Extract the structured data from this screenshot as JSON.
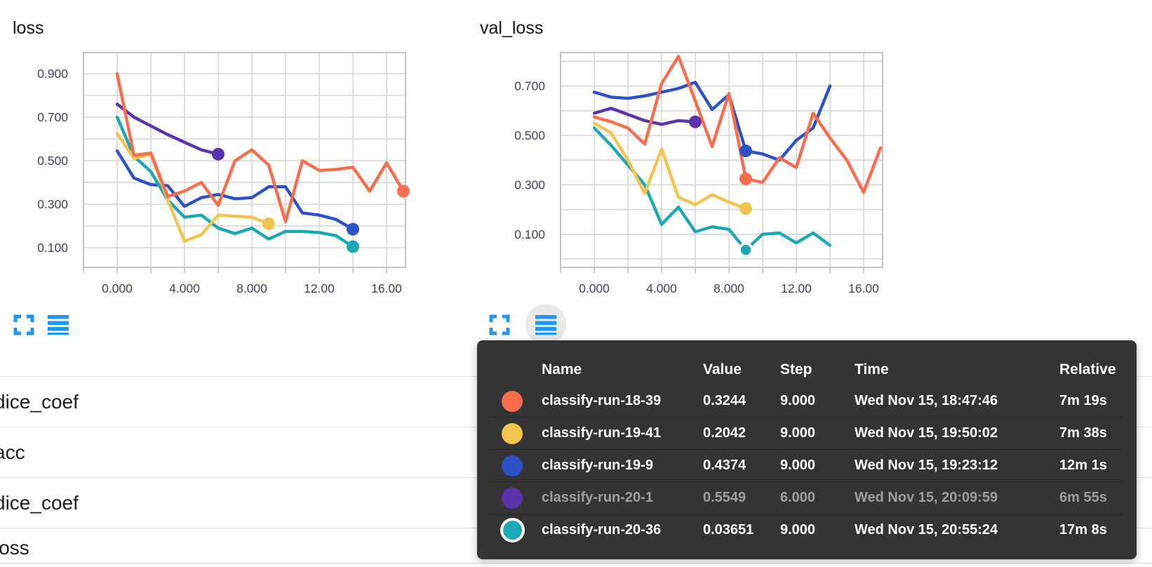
{
  "chart_data": [
    {
      "type": "line",
      "title": "loss",
      "xlabel": "",
      "ylabel": "",
      "xlim": [
        -2,
        17.1
      ],
      "ylim": [
        0,
        1.0
      ],
      "grid": true,
      "legend": "none",
      "x_tick_labels": [
        "0.000",
        "4.000",
        "8.000",
        "12.00",
        "16.00"
      ],
      "x_tick_steps": [
        0,
        4,
        8,
        12,
        16
      ],
      "y_tick_labels": [
        "0.900",
        "0.700",
        "0.500",
        "0.300",
        "0.100"
      ],
      "y_tick_values": [
        0.9,
        0.7,
        0.5,
        0.3,
        0.1
      ],
      "series": [
        {
          "name": "classify-run-18-39",
          "color": "#F96C4C",
          "dot_step": 17,
          "dot_ring": false,
          "values": [
            0.9,
            0.525,
            0.535,
            0.335,
            0.36,
            0.4,
            0.295,
            0.5,
            0.55,
            0.48,
            0.22,
            0.5,
            0.455,
            0.46,
            0.47,
            0.36,
            0.49,
            0.36
          ]
        },
        {
          "name": "classify-run-19-41",
          "color": "#F1C44F",
          "dot_step": 9,
          "dot_ring": false,
          "values": [
            0.625,
            0.51,
            0.53,
            0.32,
            0.13,
            0.16,
            0.25,
            0.245,
            0.24,
            0.21
          ]
        },
        {
          "name": "classify-run-19-9",
          "color": "#2C52C6",
          "dot_step": 14,
          "dot_ring": false,
          "values": [
            0.545,
            0.42,
            0.39,
            0.385,
            0.29,
            0.33,
            0.345,
            0.325,
            0.33,
            0.38,
            0.38,
            0.26,
            0.25,
            0.23,
            0.185
          ]
        },
        {
          "name": "classify-run-20-1",
          "color": "#5C33AE",
          "dot_step": 6,
          "dot_ring": false,
          "values": [
            0.76,
            0.7,
            0.66,
            0.62,
            0.585,
            0.55,
            0.53
          ]
        },
        {
          "name": "classify-run-20-36",
          "color": "#1AA8B4",
          "dot_step": 14,
          "dot_ring": false,
          "values": [
            0.7,
            0.52,
            0.45,
            0.32,
            0.24,
            0.25,
            0.19,
            0.165,
            0.19,
            0.14,
            0.175,
            0.175,
            0.17,
            0.155,
            0.105
          ]
        }
      ]
    },
    {
      "type": "line",
      "title": "val_loss",
      "xlabel": "",
      "ylabel": "",
      "xlim": [
        -2,
        17.1
      ],
      "ylim": [
        -0.03,
        0.84
      ],
      "grid": true,
      "legend": "none",
      "x_tick_labels": [
        "0.000",
        "4.000",
        "8.000",
        "12.00",
        "16.00"
      ],
      "x_tick_steps": [
        0,
        4,
        8,
        12,
        16
      ],
      "y_tick_labels": [
        "0.700",
        "0.500",
        "0.300",
        "0.100"
      ],
      "y_tick_values": [
        0.7,
        0.5,
        0.3,
        0.1
      ],
      "series": [
        {
          "name": "classify-run-18-39",
          "color": "#F96C4C",
          "dot_step": 9,
          "dot_ring": false,
          "values": [
            0.575,
            0.555,
            0.53,
            0.465,
            0.71,
            0.82,
            0.64,
            0.455,
            0.67,
            0.3244,
            0.31,
            0.41,
            0.37,
            0.59,
            0.49,
            0.4,
            0.27,
            0.45
          ]
        },
        {
          "name": "classify-run-19-41",
          "color": "#F1C44F",
          "dot_step": 9,
          "dot_ring": false,
          "values": [
            0.55,
            0.51,
            0.4,
            0.265,
            0.445,
            0.25,
            0.22,
            0.26,
            0.23,
            0.2042
          ]
        },
        {
          "name": "classify-run-19-9",
          "color": "#2C52C6",
          "dot_step": 9,
          "dot_ring": false,
          "values": [
            0.675,
            0.655,
            0.65,
            0.66,
            0.675,
            0.69,
            0.715,
            0.605,
            0.665,
            0.4374,
            0.425,
            0.4,
            0.48,
            0.53,
            0.7
          ]
        },
        {
          "name": "classify-run-20-1",
          "color": "#5C33AE",
          "dot_step": 6,
          "dot_ring": false,
          "values": [
            0.59,
            0.61,
            0.585,
            0.56,
            0.545,
            0.56,
            0.5549
          ]
        },
        {
          "name": "classify-run-20-36",
          "color": "#1AA8B4",
          "dot_step": 9,
          "dot_ring": true,
          "values": [
            0.53,
            0.46,
            0.38,
            0.3,
            0.14,
            0.21,
            0.11,
            0.13,
            0.12,
            0.03651,
            0.1,
            0.105,
            0.065,
            0.105,
            0.055
          ]
        }
      ]
    }
  ],
  "tooltip": {
    "columns": [
      "Name",
      "Value",
      "Step",
      "Time",
      "Relative"
    ],
    "rows": [
      {
        "color": "#F96C4C",
        "name": "classify-run-18-39",
        "value": "0.3244",
        "step": "9.000",
        "time": "Wed Nov 15, 18:47:46",
        "relative": "7m 19s",
        "dimmed": false,
        "ring": false
      },
      {
        "color": "#F1C44F",
        "name": "classify-run-19-41",
        "value": "0.2042",
        "step": "9.000",
        "time": "Wed Nov 15, 19:50:02",
        "relative": "7m 38s",
        "dimmed": false,
        "ring": false
      },
      {
        "color": "#2C52C6",
        "name": "classify-run-19-9",
        "value": "0.4374",
        "step": "9.000",
        "time": "Wed Nov 15, 19:23:12",
        "relative": "12m 1s",
        "dimmed": false,
        "ring": false
      },
      {
        "color": "#5C33AE",
        "name": "classify-run-20-1",
        "value": "0.5549",
        "step": "6.000",
        "time": "Wed Nov 15, 20:09:59",
        "relative": "6m 55s",
        "dimmed": true,
        "ring": false
      },
      {
        "color": "#1AA8B4",
        "name": "classify-run-20-36",
        "value": "0.03651",
        "step": "9.000",
        "time": "Wed Nov 15, 20:55:24",
        "relative": "17m 8s",
        "dimmed": false,
        "ring": true
      }
    ]
  },
  "bottom_list": {
    "items": [
      "dice_coef",
      "acc",
      "dice_coef",
      "loss"
    ]
  },
  "colors": {
    "icon_blue": "#2196F3",
    "tooltip_bg": "#343434",
    "dim_text": "#9E9E9E",
    "grid": "#d6d6d6",
    "plot_border": "#bdbdbd",
    "axis_text": "#42425a",
    "separator": "#e2e2e2",
    "hover_circle": "#e9e9e9"
  }
}
